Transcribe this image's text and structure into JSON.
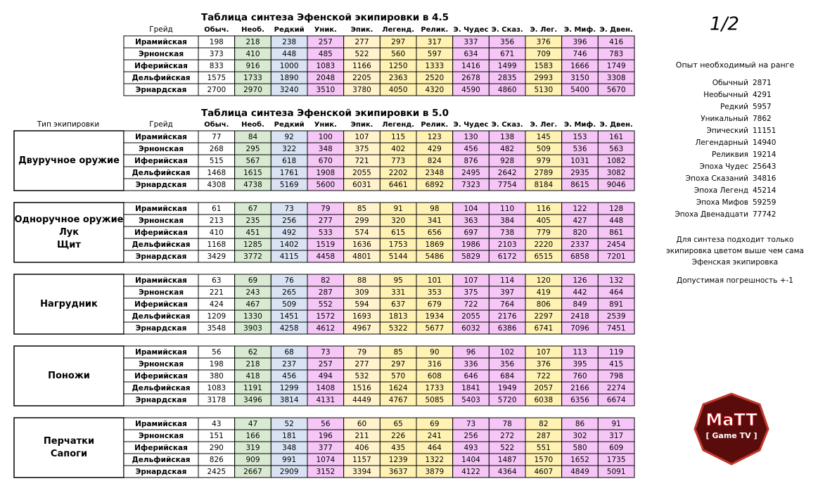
{
  "title_45": "Таблица синтеза Эфенской экипировки в 4.5",
  "title_50": "Таблица синтеза Эфенской экипировки в 5.0",
  "grade_header": "Грейд",
  "type_header": "Тип экипировки",
  "columns": [
    "Обыч.",
    "Необ.",
    "Редкий",
    "Уник.",
    "Эпик.",
    "Легенд.",
    "Релик.",
    "Э. Чудес",
    "Э. Сказ.",
    "Э. Лег.",
    "Э. Миф.",
    "Э. Двен."
  ],
  "table_45": {
    "rows": [
      {
        "grade": "Ирамийская",
        "values": [
          198,
          218,
          238,
          257,
          277,
          297,
          317,
          337,
          356,
          376,
          396,
          416
        ]
      },
      {
        "grade": "Эрнонская",
        "values": [
          373,
          410,
          448,
          485,
          522,
          560,
          597,
          634,
          671,
          709,
          746,
          783
        ]
      },
      {
        "grade": "Иферийская",
        "values": [
          833,
          916,
          1000,
          1083,
          1166,
          1250,
          1333,
          1416,
          1499,
          1583,
          1666,
          1749
        ]
      },
      {
        "grade": "Дельфийская",
        "values": [
          1575,
          1733,
          1890,
          2048,
          2205,
          2363,
          2520,
          2678,
          2835,
          2993,
          3150,
          3308
        ]
      },
      {
        "grade": "Эрнардская",
        "values": [
          2700,
          2970,
          3240,
          3510,
          3780,
          4050,
          4320,
          4590,
          4860,
          5130,
          5400,
          5670
        ]
      }
    ]
  },
  "groups": [
    {
      "type": [
        "Двуручное оружие"
      ],
      "rows": [
        {
          "grade": "Ирамийская",
          "values": [
            77,
            84,
            92,
            100,
            107,
            115,
            123,
            130,
            138,
            145,
            153,
            161
          ]
        },
        {
          "grade": "Эрнонская",
          "values": [
            268,
            295,
            322,
            348,
            375,
            402,
            429,
            456,
            482,
            509,
            536,
            563
          ]
        },
        {
          "grade": "Иферийская",
          "values": [
            515,
            567,
            618,
            670,
            721,
            773,
            824,
            876,
            928,
            979,
            1031,
            1082
          ]
        },
        {
          "grade": "Дельфийская",
          "values": [
            1468,
            1615,
            1761,
            1908,
            2055,
            2202,
            2348,
            2495,
            2642,
            2789,
            2935,
            3082
          ]
        },
        {
          "grade": "Эрнардская",
          "values": [
            4308,
            4738,
            5169,
            5600,
            6031,
            6461,
            6892,
            7323,
            7754,
            8184,
            8615,
            9046
          ]
        }
      ]
    },
    {
      "type": [
        "Одноручное оружие",
        "Лук",
        "Щит"
      ],
      "rows": [
        {
          "grade": "Ирамийская",
          "values": [
            61,
            67,
            73,
            79,
            85,
            91,
            98,
            104,
            110,
            116,
            122,
            128
          ]
        },
        {
          "grade": "Эрнонская",
          "values": [
            213,
            235,
            256,
            277,
            299,
            320,
            341,
            363,
            384,
            405,
            427,
            448
          ]
        },
        {
          "grade": "Иферийская",
          "values": [
            410,
            451,
            492,
            533,
            574,
            615,
            656,
            697,
            738,
            779,
            820,
            861
          ]
        },
        {
          "grade": "Дельфийская",
          "values": [
            1168,
            1285,
            1402,
            1519,
            1636,
            1753,
            1869,
            1986,
            2103,
            2220,
            2337,
            2454
          ]
        },
        {
          "grade": "Эрнардская",
          "values": [
            3429,
            3772,
            4115,
            4458,
            4801,
            5144,
            5486,
            5829,
            6172,
            6515,
            6858,
            7201
          ]
        }
      ]
    },
    {
      "type": [
        "Нагрудник"
      ],
      "rows": [
        {
          "grade": "Ирамийская",
          "values": [
            63,
            69,
            76,
            82,
            88,
            95,
            101,
            107,
            114,
            120,
            126,
            132
          ]
        },
        {
          "grade": "Эрнонская",
          "values": [
            221,
            243,
            265,
            287,
            309,
            331,
            353,
            375,
            397,
            419,
            442,
            464
          ]
        },
        {
          "grade": "Иферийская",
          "values": [
            424,
            467,
            509,
            552,
            594,
            637,
            679,
            722,
            764,
            806,
            849,
            891
          ]
        },
        {
          "grade": "Дельфийская",
          "values": [
            1209,
            1330,
            1451,
            1572,
            1693,
            1813,
            1934,
            2055,
            2176,
            2297,
            2418,
            2539
          ]
        },
        {
          "grade": "Эрнардская",
          "values": [
            3548,
            3903,
            4258,
            4612,
            4967,
            5322,
            5677,
            6032,
            6386,
            6741,
            7096,
            7451
          ]
        }
      ]
    },
    {
      "type": [
        "Поножи"
      ],
      "rows": [
        {
          "grade": "Ирамийская",
          "values": [
            56,
            62,
            68,
            73,
            79,
            85,
            90,
            96,
            102,
            107,
            113,
            119
          ]
        },
        {
          "grade": "Эрнонская",
          "values": [
            198,
            218,
            237,
            257,
            277,
            297,
            316,
            336,
            356,
            376,
            395,
            415
          ]
        },
        {
          "grade": "Иферийская",
          "values": [
            380,
            418,
            456,
            494,
            532,
            570,
            608,
            646,
            684,
            722,
            760,
            798
          ]
        },
        {
          "grade": "Дельфийская",
          "values": [
            1083,
            1191,
            1299,
            1408,
            1516,
            1624,
            1733,
            1841,
            1949,
            2057,
            2166,
            2274
          ]
        },
        {
          "grade": "Эрнардская",
          "values": [
            3178,
            3496,
            3814,
            4131,
            4449,
            4767,
            5085,
            5403,
            5720,
            6038,
            6356,
            6674
          ]
        }
      ]
    },
    {
      "type": [
        "Перчатки",
        "Сапоги"
      ],
      "rows": [
        {
          "grade": "Ирамийская",
          "values": [
            43,
            47,
            52,
            56,
            60,
            65,
            69,
            73,
            78,
            82,
            86,
            91
          ]
        },
        {
          "grade": "Эрнонская",
          "values": [
            151,
            166,
            181,
            196,
            211,
            226,
            241,
            256,
            272,
            287,
            302,
            317
          ]
        },
        {
          "grade": "Иферийская",
          "values": [
            290,
            319,
            348,
            377,
            406,
            435,
            464,
            493,
            522,
            551,
            580,
            609
          ]
        },
        {
          "grade": "Дельфийская",
          "values": [
            826,
            909,
            991,
            1074,
            1157,
            1239,
            1322,
            1404,
            1487,
            1570,
            1652,
            1735
          ]
        },
        {
          "grade": "Эрнардская",
          "values": [
            2425,
            2667,
            2909,
            3152,
            3394,
            3637,
            3879,
            4122,
            4364,
            4607,
            4849,
            5091
          ]
        }
      ]
    }
  ],
  "page_number": "1/2",
  "exp_title": "Опыт необходимый на ранге",
  "exp": [
    {
      "name": "Обычный",
      "value": 2871
    },
    {
      "name": "Необычный",
      "value": 4291
    },
    {
      "name": "Редкий",
      "value": 5957
    },
    {
      "name": "Уникальный",
      "value": 7862
    },
    {
      "name": "Эпический",
      "value": 11151
    },
    {
      "name": "Легендарный",
      "value": 14940
    },
    {
      "name": "Реликвия",
      "value": 19214
    },
    {
      "name": "Эпоха Чудес",
      "value": 25643
    },
    {
      "name": "Эпоха Сказаний",
      "value": 34816
    },
    {
      "name": "Эпоха Легенд",
      "value": 45214
    },
    {
      "name": "Эпоха Мифов",
      "value": 59259
    },
    {
      "name": "Эпоха Двенадцати",
      "value": 77742
    }
  ],
  "notes": [
    "Для синтеза подходит только",
    "экипировка цветом выше чем сама",
    "Эфенская экипировка"
  ],
  "tolerance": "Допустимая погрешность +-1",
  "logo": {
    "name": "MaTT",
    "sub": "[ Game TV ]"
  }
}
